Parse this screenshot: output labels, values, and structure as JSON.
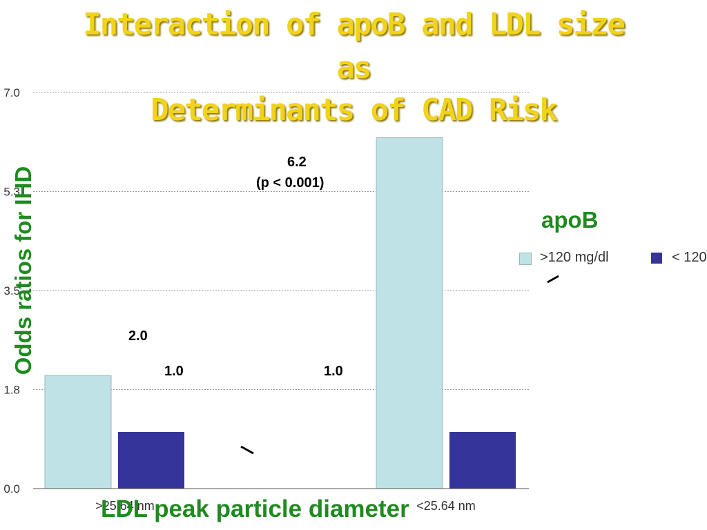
{
  "title": {
    "line1": "Interaction of apoB and LDL size",
    "line2": "as",
    "line3": "Determinants of CAD Risk"
  },
  "chart_data": {
    "type": "bar",
    "categories": [
      ">25.64 nm",
      "<25.64 nm"
    ],
    "series": [
      {
        "name": ">120 mg/dl",
        "values": [
          2.0,
          6.2
        ],
        "color": "#bfe2e6"
      },
      {
        "name": "< 120",
        "values": [
          1.0,
          1.0
        ],
        "color": "#35349a"
      }
    ],
    "y_ticks": [
      "0.0",
      "1.8",
      "3.5",
      "5.3",
      "7.0"
    ],
    "ylim": [
      0,
      7.0
    ],
    "grid": true,
    "xlabel": "LDL peak particle diameter",
    "ylabel": "Odds ratios for IHD",
    "legend": {
      "title": "apoB",
      "position": "right"
    },
    "annotations": [
      {
        "text": "2.0"
      },
      {
        "text": "1.0"
      },
      {
        "text": "1.0"
      },
      {
        "text": "6.2"
      },
      {
        "text": "(p < 0.001)"
      }
    ]
  },
  "colors": {
    "title": "#f2d31b",
    "axis_label": "#1f8a1f",
    "grid": "#9a9a9a"
  }
}
